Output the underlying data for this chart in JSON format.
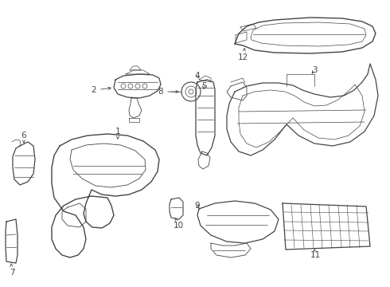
{
  "background_color": "#ffffff",
  "line_color": "#444444",
  "label_color": "#000000",
  "fig_width": 4.9,
  "fig_height": 3.6,
  "dpi": 100,
  "label_fontsize": 7.5,
  "lw_main": 0.8,
  "lw_detail": 0.5
}
